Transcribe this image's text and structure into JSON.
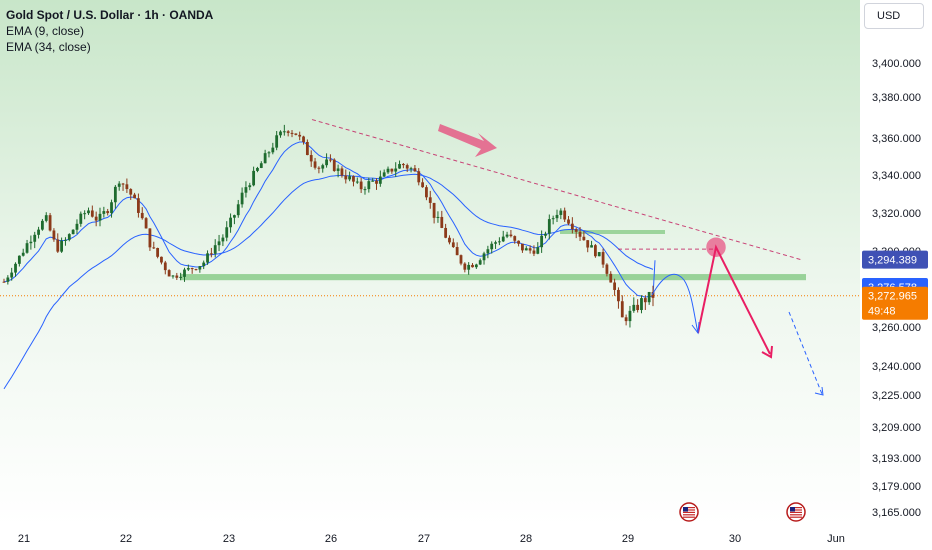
{
  "header": {
    "title": "Gold Spot / U.S. Dollar · 1h · OANDA",
    "indicators": [
      "EMA (9, close)",
      "EMA (34, close)"
    ],
    "currency_button": "USD"
  },
  "colors": {
    "bull": "#1e6b2e",
    "bear": "#8b3a1a",
    "ema9": "#2962ff",
    "ema34": "#2962ff",
    "support": "#7cc67c",
    "trendline": "#c2185b",
    "arrow": "#e91e63",
    "projection": "#2962ff",
    "tag_blue": "#3b5bdb",
    "tag_last": "#2962ff",
    "tag_orange": "#f57c00"
  },
  "chart_data": {
    "type": "candlestick",
    "y_axis": {
      "ticks": [
        "3,400.000",
        "3,380.000",
        "3,360.000",
        "3,340.000",
        "3,320.000",
        "3,300.000",
        "3,276.578",
        "3,260.000",
        "3,240.000",
        "3,225.000",
        "3,209.000",
        "3,193.000",
        "3,179.000",
        "3,165.000"
      ],
      "ticks_label_only_hidden": [
        "3,294.389",
        "3,272.965"
      ]
    },
    "x_axis": {
      "ticks": [
        "21",
        "22",
        "23",
        "26",
        "27",
        "28",
        "29",
        "30",
        "Jun"
      ]
    },
    "price_tags": {
      "level_high": "3,294.389",
      "level_mid": "3,276.578",
      "last_price": "3,272.965",
      "countdown": "49:48"
    },
    "series": [
      {
        "name": "EMA (9, close)"
      },
      {
        "name": "EMA (34, close)"
      }
    ],
    "annotations": {
      "support_zone": [
        3281,
        3285
      ],
      "resistance_line": 3310,
      "descending_trendline": [
        [
          3369,
          3294
        ]
      ],
      "target_circle": 3302
    },
    "ohlc_trend": [
      3280,
      3291,
      3302,
      3311,
      3317,
      3301,
      3306,
      3315,
      3322,
      3316,
      3323,
      3338,
      3331,
      3320,
      3303,
      3293,
      3283,
      3286,
      3289,
      3292,
      3302,
      3308,
      3319,
      3333,
      3341,
      3350,
      3359,
      3365,
      3362,
      3352,
      3344,
      3347,
      3342,
      3338,
      3333,
      3336,
      3338,
      3343,
      3346,
      3343,
      3336,
      3320,
      3310,
      3299,
      3290,
      3292,
      3300,
      3305,
      3309,
      3303,
      3300,
      3301,
      3314,
      3322,
      3316,
      3309,
      3302,
      3296,
      3281,
      3263,
      3266,
      3271,
      3273
    ]
  }
}
